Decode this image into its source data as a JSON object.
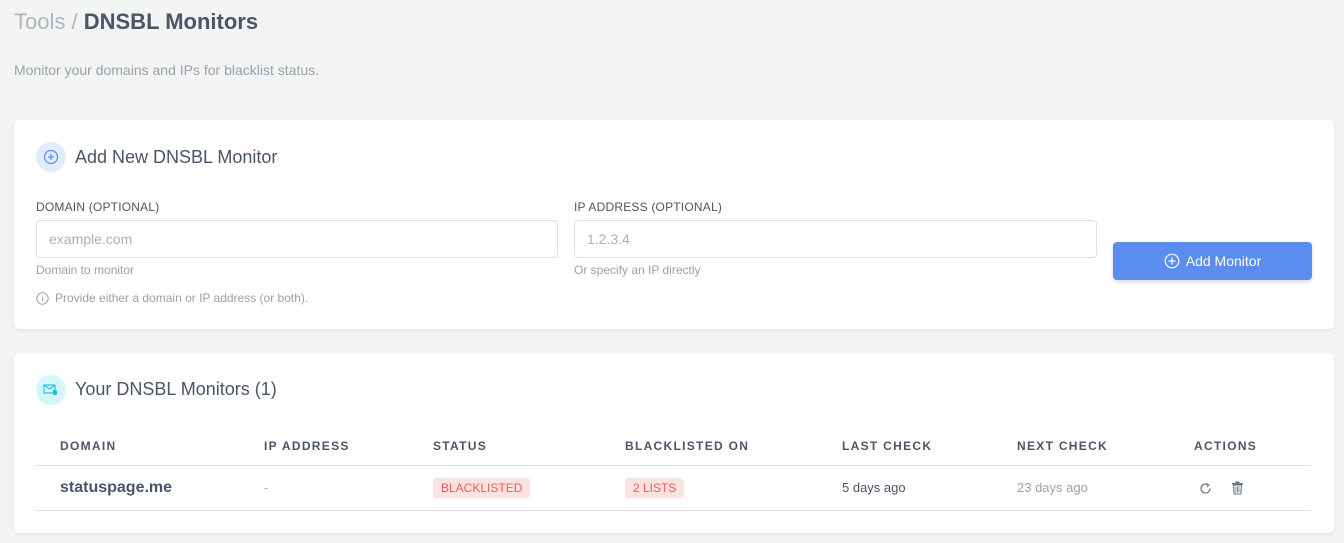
{
  "header": {
    "breadcrumb_parent": "Tools",
    "separator": "/",
    "title": "DNSBL Monitors",
    "subtitle": "Monitor your domains and IPs for blacklist status."
  },
  "add_card": {
    "title": "Add New DNSBL Monitor",
    "domain": {
      "label": "DOMAIN (OPTIONAL)",
      "placeholder": "example.com",
      "value": "",
      "help": "Domain to monitor"
    },
    "ip": {
      "label": "IP ADDRESS (OPTIONAL)",
      "placeholder": "1.2.3.4",
      "value": "",
      "help": "Or specify an IP directly"
    },
    "note": "Provide either a domain or IP address (or both).",
    "button": "Add Monitor"
  },
  "monitors_card": {
    "title": "Your DNSBL Monitors (1)",
    "columns": [
      "DOMAIN",
      "IP ADDRESS",
      "STATUS",
      "BLACKLISTED ON",
      "LAST CHECK",
      "NEXT CHECK",
      "ACTIONS"
    ],
    "rows": [
      {
        "domain": "statuspage.me",
        "ip": "-",
        "status": "BLACKLISTED",
        "blacklisted_on": "2 LISTS",
        "last_check": "5 days ago",
        "next_check": "23 days ago",
        "actions": [
          "refresh-icon",
          "trash-icon"
        ]
      }
    ]
  },
  "colors": {
    "accent": "#5b8def",
    "danger": "#ef5b5b",
    "danger_bg": "#fde2e2"
  }
}
